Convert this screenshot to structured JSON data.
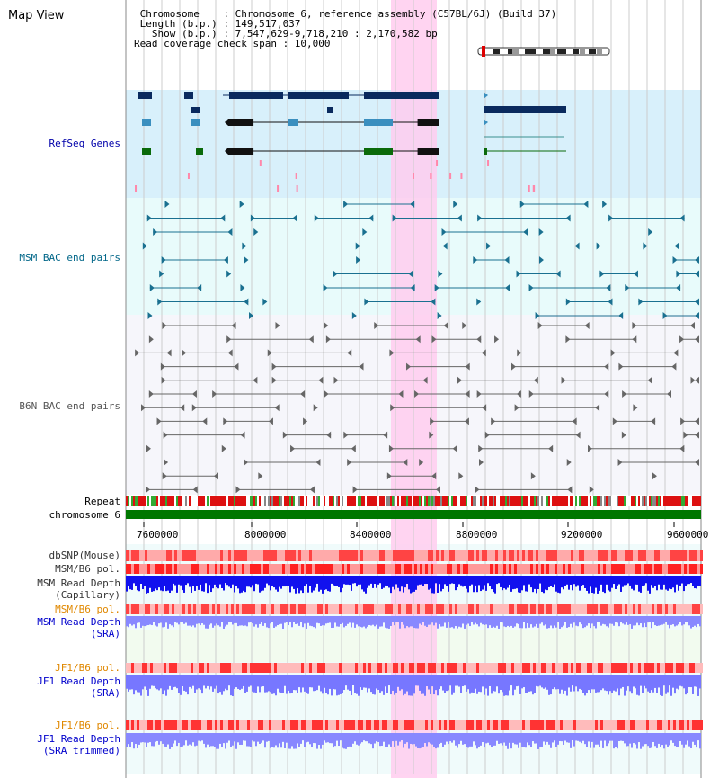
{
  "header": {
    "title": "Map View",
    "lines": [
      " Chromosome    : Chromosome 6, reference assembly (C57BL/6J) (Build 37)",
      " Length (b.p.) : 149,517,037",
      "   Show (b.p.) : 7,547,629-9,718,210 : 2,170,582 bp",
      "Read coverage check span : 10,000"
    ]
  },
  "tracks": {
    "refseq": "RefSeq Genes",
    "msm_bac": "MSM BAC end pairs",
    "b6n_bac": "B6N BAC end pairs",
    "repeat": "Repeat",
    "chromosome": "chromosome 6",
    "dbsnp": "dbSNP(Mouse)",
    "msm_b6_pol_1": "MSM/B6 pol.",
    "msm_read_depth_cap_1": "MSM Read Depth",
    "msm_read_depth_cap_2": "(Capillary)",
    "msm_b6_pol_2": "MSM/B6 pol.",
    "msm_read_depth_sra_1": "MSM Read Depth",
    "msm_read_depth_sra_2": "(SRA)",
    "jf1_b6_pol_1": "JF1/B6 pol.",
    "jf1_read_depth_sra_1": "JF1 Read Depth",
    "jf1_read_depth_sra_2": "(SRA)",
    "jf1_b6_pol_2": "JF1/B6 pol.",
    "jf1_read_depth_trim_1": "JF1 Read Depth",
    "jf1_read_depth_trim_2": "(SRA trimmed)"
  },
  "axis": {
    "ticks": [
      "7600000",
      "8000000",
      "8400000",
      "8800000",
      "9200000",
      "9600000"
    ]
  },
  "colors": {
    "refseq_label": "#0000aa",
    "msm_label": "#006688",
    "b6n_label": "#555555",
    "pol_orange": "#e08800",
    "depth_blue": "#0000cc",
    "highlight": "#ffccee",
    "chromosome_green": "#007700"
  }
}
